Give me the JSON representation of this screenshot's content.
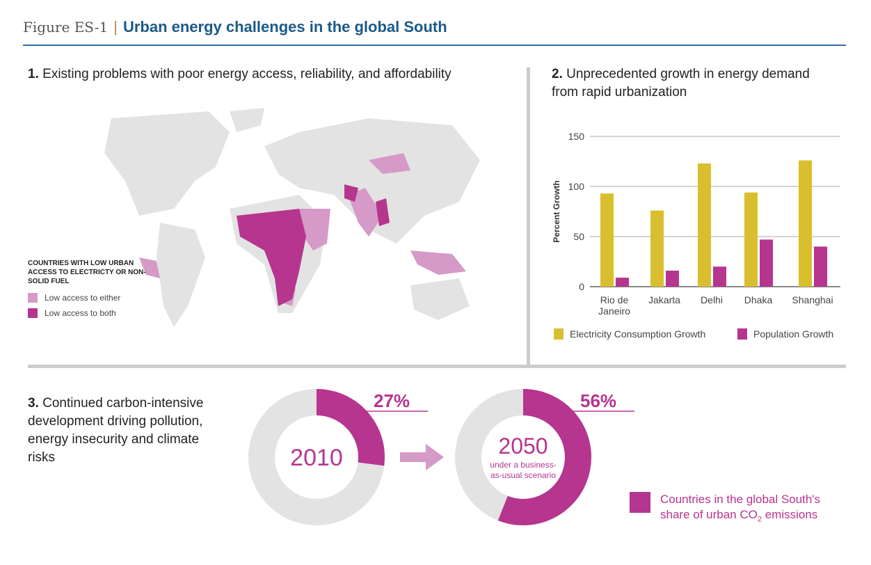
{
  "header": {
    "figure_label": "Figure ES-1",
    "separator": "|",
    "title": "Urban energy challenges in the global South"
  },
  "section1": {
    "number": "1.",
    "title": "Existing problems with poor energy access, reliability, and affordability",
    "legend_title": "COUNTRIES WITH LOW URBAN ACCESS TO ELECTRICTY OR NON-SOLID FUEL",
    "legend": [
      {
        "label": "Low access to either",
        "color": "#d59ac7"
      },
      {
        "label": "Low access to both",
        "color": "#b5358f"
      }
    ]
  },
  "section2": {
    "number": "2.",
    "title": "Unprecedented growth in energy demand from rapid urbanization"
  },
  "chart_data": {
    "type": "bar",
    "categories": [
      "Rio de Janeiro",
      "Jakarta",
      "Delhi",
      "Dhaka",
      "Shanghai"
    ],
    "series": [
      {
        "name": "Electricity Consumption Growth",
        "color": "#d9bf2e",
        "values": [
          93,
          76,
          123,
          94,
          126
        ]
      },
      {
        "name": "Population Growth",
        "color": "#b5358f",
        "values": [
          9,
          16,
          20,
          47,
          40
        ]
      }
    ],
    "ylabel": "Percent Growth",
    "ylim": [
      0,
      150
    ],
    "yticks": [
      "0",
      "50",
      "100",
      "150"
    ],
    "grid": true,
    "legend_position": "bottom"
  },
  "section3": {
    "number": "3.",
    "title": "Continued carbon-intensive development driving pollution, energy insecurity and climate risks",
    "donuts": [
      {
        "year": "2010",
        "subtitle": "",
        "share": 27,
        "label": "27%"
      },
      {
        "year": "2050",
        "subtitle": "under a business-as-usual scenario",
        "share": 56,
        "label": "56%"
      }
    ],
    "legend": "Countries in the global South's share of urban CO2 emissions",
    "legend_line1": "Countries in the global South's",
    "legend_line2": "share of urban CO",
    "legend_sub": "2",
    "legend_line2b": " emissions",
    "colors": {
      "share": "#b5358f",
      "rest": "#e3e3e3",
      "arrow": "#d59ac7"
    }
  }
}
